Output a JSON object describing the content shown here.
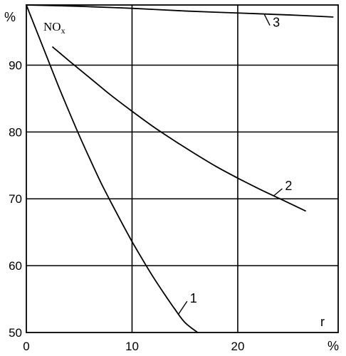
{
  "chart_data": {
    "type": "line",
    "title": "",
    "xlabel": "r",
    "ylabel": "%",
    "x_unit": "%",
    "annotation": "NOx",
    "xlim": [
      0,
      29.5
    ],
    "ylim": [
      50,
      99
    ],
    "x_ticks": [
      0,
      10,
      20
    ],
    "x_tick_labels": [
      "0",
      "10",
      "20"
    ],
    "y_ticks": [
      50,
      60,
      70,
      80,
      90
    ],
    "y_tick_labels": [
      "50",
      "60",
      "70",
      "80",
      "90"
    ],
    "grid": true,
    "legend": "none",
    "series": [
      {
        "name": "1",
        "x": [
          0.0,
          1.0,
          2.0,
          3.0,
          4.0,
          5.0,
          6.0,
          7.0,
          8.0,
          9.0,
          10.0,
          11.0,
          12.0,
          13.0,
          14.0,
          15.0,
          16.2
        ],
        "y": [
          99.0,
          95.0,
          91.0,
          87.0,
          83.2,
          79.5,
          76.0,
          72.6,
          69.5,
          66.5,
          63.6,
          60.9,
          58.3,
          55.9,
          53.6,
          51.5,
          50.0
        ]
      },
      {
        "name": "2",
        "x": [
          2.5,
          4.0,
          6.0,
          8.0,
          10.0,
          12.0,
          14.0,
          16.0,
          18.0,
          20.0,
          22.0,
          24.0,
          26.4
        ],
        "y": [
          92.7,
          90.7,
          88.1,
          85.5,
          83.1,
          80.8,
          78.7,
          76.7,
          74.8,
          73.1,
          71.5,
          70.0,
          68.2
        ]
      },
      {
        "name": "3",
        "x": [
          0.0,
          5.0,
          10.0,
          15.0,
          20.0,
          25.0,
          29.0
        ],
        "y": [
          99.0,
          98.8,
          98.5,
          98.1,
          97.8,
          97.5,
          97.2
        ]
      }
    ]
  }
}
